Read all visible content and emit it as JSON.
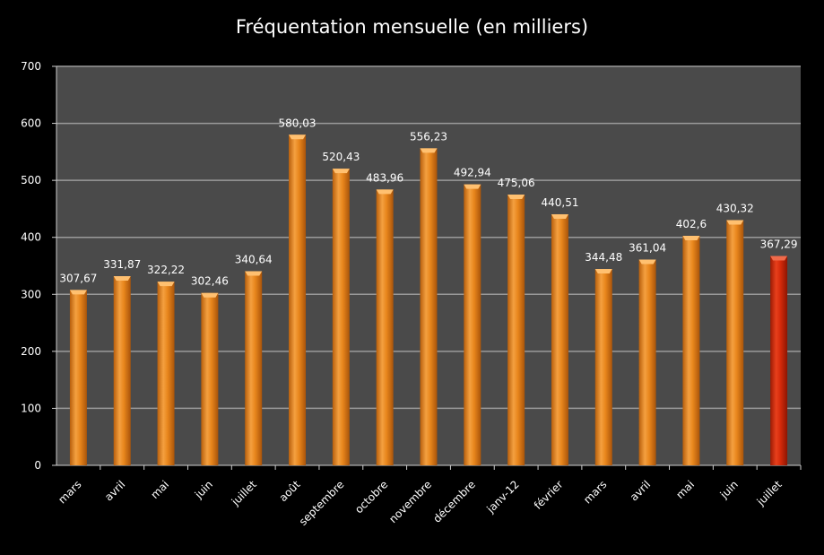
{
  "chart_data": {
    "type": "bar",
    "title": "Fréquentation mensuelle (en milliers)",
    "categories": [
      "mars",
      "avril",
      "mai",
      "juin",
      "juillet",
      "août",
      "septembre",
      "octobre",
      "novembre",
      "décembre",
      "janv-12",
      "février",
      "mars",
      "avril",
      "mai",
      "juin",
      "juillet"
    ],
    "values": [
      307.67,
      331.87,
      322.22,
      302.46,
      340.64,
      580.03,
      520.43,
      483.96,
      556.23,
      492.94,
      475.06,
      440.51,
      344.48,
      361.04,
      402.6,
      430.32,
      367.29
    ],
    "value_labels": [
      "307,67",
      "331,87",
      "322,22",
      "302,46",
      "340,64",
      "580,03",
      "520,43",
      "483,96",
      "556,23",
      "492,94",
      "475,06",
      "440,51",
      "344,48",
      "361,04",
      "402,6",
      "430,32",
      "367,29"
    ],
    "ylim": [
      0,
      700
    ],
    "yticks": [
      0,
      100,
      200,
      300,
      400,
      500,
      600,
      700
    ],
    "grid": true,
    "legend": "none",
    "colors": {
      "bar": "#e8861c",
      "bar_highlight": "#d42a0a",
      "plot_background": "#4a4a4a",
      "page_background": "#000000",
      "gridline": "#9a9a9a",
      "text": "#ffffff"
    },
    "highlight_index": 16
  }
}
